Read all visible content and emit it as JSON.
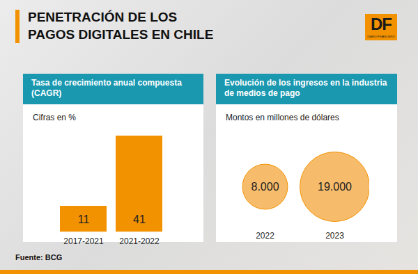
{
  "title": "PENETRACIÓN DE LOS\nPAGOS DIGITALES EN CHILE",
  "logo": {
    "text": "DF",
    "subtitle": "DIARIO FINANCIERO"
  },
  "source": "Fuente: BCG",
  "chart_data": [
    {
      "type": "bar",
      "title": "Tasa de crecimiento anual compuesta (CAGR)",
      "subtitle": "Cifras en %",
      "categories": [
        "2017-2021",
        "2021-2022"
      ],
      "values": [
        11,
        41
      ],
      "color": "#f39200",
      "ylim": [
        0,
        41
      ],
      "data_labels": true,
      "tick_labels": "x"
    },
    {
      "type": "bubble",
      "title": "Evolución de los ingresos en la industria de medios de pago",
      "subtitle": "Montos en millones de dólares",
      "categories": [
        "2022",
        "2023"
      ],
      "values": [
        8000,
        19000
      ],
      "value_labels": [
        "8.000",
        "19.000"
      ],
      "color": "#f6b55b",
      "data_labels": true,
      "tick_labels": "x"
    }
  ]
}
